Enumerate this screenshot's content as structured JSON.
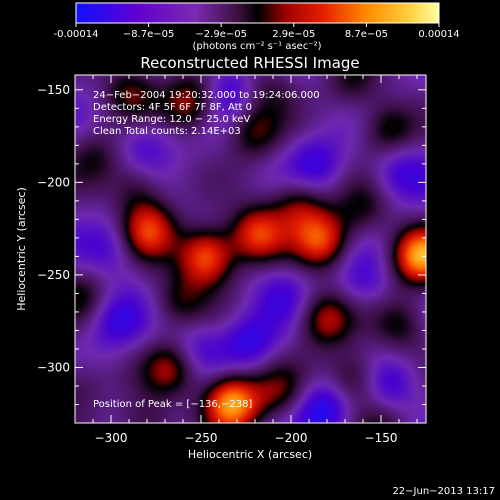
{
  "chart_data": {
    "type": "heatmap",
    "title": "Reconstructed RHESSI Image",
    "xlabel": "Heliocentric X (arcsec)",
    "ylabel": "Heliocentric Y (arcsec)",
    "xlim": [
      -320,
      -125
    ],
    "ylim": [
      -330,
      -142
    ],
    "x_ticks": [
      -300,
      -250,
      -200,
      -150
    ],
    "x_tick_labels": [
      "−300",
      "−250",
      "−200",
      "−150"
    ],
    "y_ticks": [
      -300,
      -250,
      -200,
      -150
    ],
    "y_tick_labels": [
      "−300",
      "−250",
      "−200",
      "−150"
    ],
    "colorbar": {
      "range": [
        -0.00014,
        0.00014
      ],
      "tick_labels": [
        "-0.00014",
        "−8.7e−05",
        "−2.9e−05",
        "2.9e−05",
        "8.7e−05",
        "0.00014"
      ],
      "units_label": "(photons cm⁻² s⁻¹ asec⁻²)"
    },
    "info_lines": [
      "24−Feb−2004 19:20:32.000 to 19:24:06.000",
      "Detectors: 4F 5F 6F 7F 8F, Att 0",
      "Energy Range: 12.0 − 25.0 keV",
      "Clean     Total counts: 2.14E+03"
    ],
    "peak_label": "Position of Peak = [−136,−238]",
    "peak_position": [
      -136,
      -238
    ],
    "sources": [
      {
        "x": -233,
        "y": -319,
        "v": 1.0
      },
      {
        "x": -128,
        "y": -240,
        "v": 0.95
      },
      {
        "x": -247,
        "y": -240,
        "v": 0.85
      },
      {
        "x": -219,
        "y": -228,
        "v": 0.7
      },
      {
        "x": -183,
        "y": -231,
        "v": 0.7
      },
      {
        "x": -279,
        "y": -226,
        "v": 0.65
      },
      {
        "x": -256,
        "y": -157,
        "v": 0.55
      },
      {
        "x": -146,
        "y": -171,
        "v": 0.45
      },
      {
        "x": -181,
        "y": -274,
        "v": 0.55
      },
      {
        "x": -196,
        "y": -212,
        "v": 0.45
      },
      {
        "x": -286,
        "y": -203,
        "v": 0.35
      },
      {
        "x": -309,
        "y": -186,
        "v": 0.3
      },
      {
        "x": -266,
        "y": -300,
        "v": 0.5
      },
      {
        "x": -207,
        "y": -313,
        "v": 0.35
      },
      {
        "x": -165,
        "y": -306,
        "v": 0.45
      },
      {
        "x": -139,
        "y": -277,
        "v": 0.35
      },
      {
        "x": -263,
        "y": -264,
        "v": 0.35
      },
      {
        "x": -316,
        "y": -261,
        "v": 0.3
      },
      {
        "x": -289,
        "y": -150,
        "v": 0.4
      },
      {
        "x": -221,
        "y": -173,
        "v": 0.4
      },
      {
        "x": -166,
        "y": -147,
        "v": 0.3
      },
      {
        "x": -319,
        "y": -310,
        "v": 0.3
      },
      {
        "x": -281,
        "y": -333,
        "v": 0.35
      },
      {
        "x": -149,
        "y": -330,
        "v": 0.25
      },
      {
        "x": -160,
        "y": -215,
        "v": 0.3
      },
      {
        "x": -212,
        "y": -148,
        "v": 0.25
      },
      {
        "x": -186,
        "y": -190,
        "v": -0.3
      },
      {
        "x": -223,
        "y": -286,
        "v": -0.35
      },
      {
        "x": -182,
        "y": -322,
        "v": -0.45
      },
      {
        "x": -298,
        "y": -275,
        "v": -0.3
      },
      {
        "x": -234,
        "y": -150,
        "v": -0.3
      },
      {
        "x": -140,
        "y": -195,
        "v": -0.3
      },
      {
        "x": -281,
        "y": -180,
        "v": -0.25
      },
      {
        "x": -300,
        "y": -235,
        "v": -0.25
      },
      {
        "x": -160,
        "y": -255,
        "v": -0.25
      },
      {
        "x": -145,
        "y": -310,
        "v": -0.3
      },
      {
        "x": -254,
        "y": -290,
        "v": -0.25
      },
      {
        "x": -205,
        "y": -260,
        "v": -0.2
      }
    ]
  },
  "footer": {
    "timestamp": "22−Jun−2013 13:17"
  }
}
